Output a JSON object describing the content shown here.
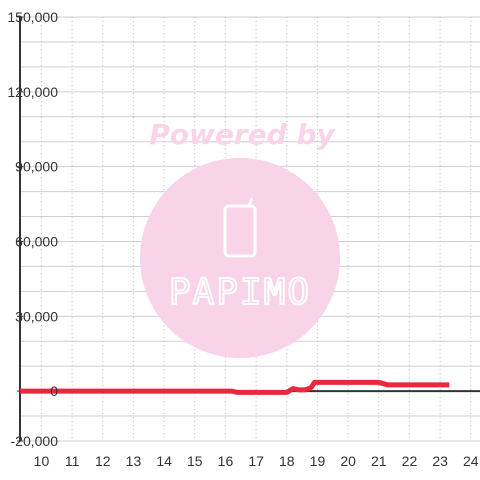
{
  "watermark": {
    "caption": "Powered by",
    "brand": "PAPIMO",
    "color": "#f9d3e8"
  },
  "chart_data": {
    "type": "line",
    "title": "",
    "xlabel": "",
    "ylabel": "",
    "xlim": [
      9.3,
      24.3
    ],
    "ylim": [
      -20000,
      150000
    ],
    "x_ticks": [
      10,
      11,
      12,
      13,
      14,
      15,
      16,
      17,
      18,
      19,
      20,
      21,
      22,
      23,
      24
    ],
    "x_tick_labels": [
      "10",
      "11",
      "12",
      "13",
      "14",
      "15",
      "16",
      "17",
      "18",
      "19",
      "20",
      "21",
      "22",
      "23",
      "24"
    ],
    "y_ticks": [
      -20000,
      0,
      30000,
      60000,
      90000,
      120000,
      150000
    ],
    "y_tick_labels": [
      "-20,000",
      "0",
      "30,000",
      "60,000",
      "90,000",
      "120,000",
      "150,000"
    ],
    "grid": true,
    "zero_line_color": "#333333",
    "series": [
      {
        "color": "#e8283c",
        "x": [
          9.3,
          10,
          11,
          12,
          13,
          14,
          15,
          16,
          16.2,
          16.4,
          17,
          17.5,
          18,
          18.2,
          18.4,
          18.6,
          18.8,
          18.9,
          19,
          19.5,
          20,
          20.5,
          20.9,
          21,
          21.3,
          21.6,
          22,
          22.5,
          23,
          23.3
        ],
        "y": [
          0,
          0,
          0,
          0,
          0,
          0,
          0,
          0,
          0,
          -500,
          -500,
          -500,
          -500,
          1000,
          500,
          500,
          1500,
          3500,
          3500,
          3500,
          3500,
          3500,
          3500,
          3500,
          2500,
          2500,
          2500,
          2500,
          2500,
          2500
        ]
      }
    ]
  }
}
